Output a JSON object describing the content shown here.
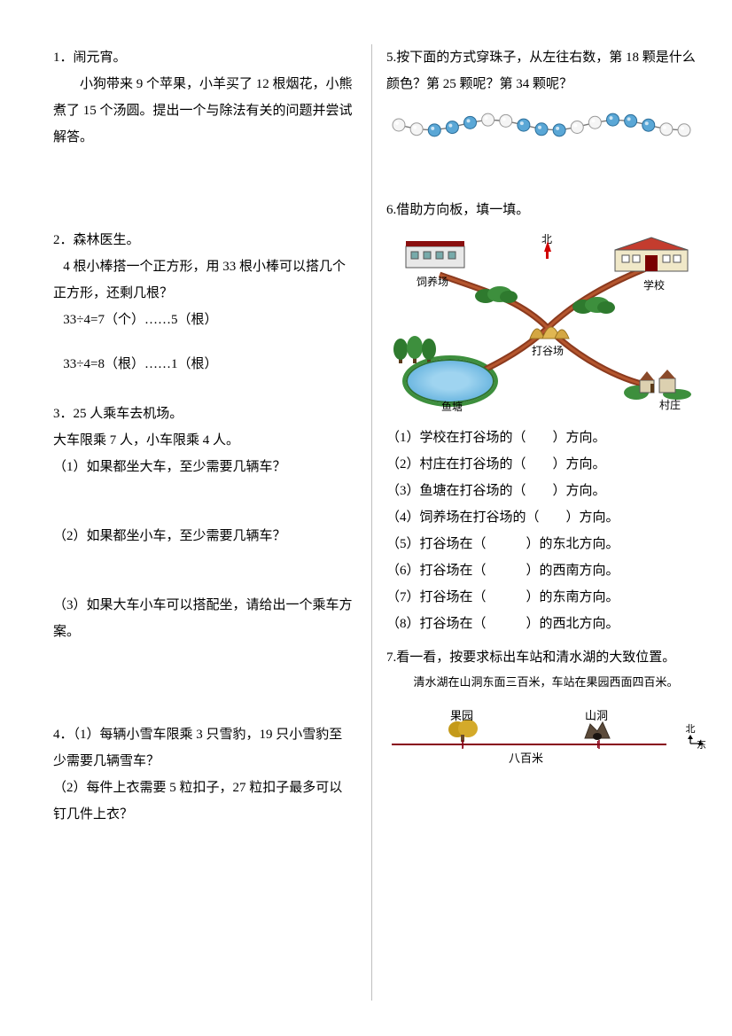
{
  "q1": {
    "num": "1．",
    "title": "闹元宵。",
    "body": "小狗带来 9 个苹果，小羊买了 12 根烟花，小熊煮了 15 个汤圆。提出一个与除法有关的问题并尝试解答。"
  },
  "q2": {
    "num": "2．",
    "title": "森林医生。",
    "body": "4 根小棒搭一个正方形，用 33 根小棒可以搭几个正方形，还剩几根？",
    "line1": "33÷4=7（个）……5（根）",
    "line2": "33÷4=8（根）……1（根）"
  },
  "q3": {
    "num": "3．",
    "title": "25 人乘车去机场。",
    "body": "大车限乘 7 人，小车限乘 4 人。",
    "p1": "（1）如果都坐大车，至少需要几辆车？",
    "p2": "（2）如果都坐小车，至少需要几辆车？",
    "p3": "（3）如果大车小车可以搭配坐，请给出一个乘车方案。"
  },
  "q4": {
    "num": "4．",
    "p1": "（1）每辆小雪车限乘 3 只雪豹，19 只小雪豹至少需要几辆雪车？",
    "p2": "（2）每件上衣需要 5 粒扣子，27 粒扣子最多可以钉几件上衣？"
  },
  "q5": {
    "num": "5.",
    "body": "按下面的方式穿珠子，从左往右数，第 18 颗是什么颜色？第 25 颗呢？第 34 颗呢？",
    "beads": {
      "pattern": [
        "w",
        "w",
        "b",
        "b",
        "b",
        "w",
        "w",
        "b",
        "b",
        "b",
        "w",
        "w",
        "b",
        "b",
        "b",
        "w",
        "w"
      ],
      "white_color": "#f5f5f5",
      "blue_color": "#5aa7d6",
      "string_color": "#7a7a7a",
      "radius": 7
    }
  },
  "q6": {
    "num": "6.",
    "title": "借助方向板，填一填。",
    "labels": {
      "farm": "饲养场",
      "school": "学校",
      "ground": "打谷场",
      "pond": "鱼塘",
      "village": "村庄",
      "north": "北"
    },
    "items": [
      "（1）学校在打谷场的（　　）方向。",
      "（2）村庄在打谷场的（　　）方向。",
      "（3）鱼塘在打谷场的（　　）方向。",
      "（4）饲养场在打谷场的（　　）方向。",
      "（5）打谷场在（　　　）的东北方向。",
      "（6）打谷场在（　　　）的西南方向。",
      "（7）打谷场在（　　　）的东南方向。",
      "（8）打谷场在（　　　）的西北方向。"
    ],
    "colors": {
      "road": "#8b3a1e",
      "grass": "#3d8f3d",
      "water": "#4aa3d6",
      "building": "#d9d9d9",
      "roof": "#7a0000",
      "gold": "#d4a742"
    }
  },
  "q7": {
    "num": "7.",
    "body": "看一看，按要求标出车站和清水湖的大致位置。",
    "caption": "清水湖在山洞东面三百米，车站在果园西面四百米。",
    "orchard": "果园",
    "cave": "山洞",
    "distance": "八百米",
    "north": "北",
    "east": "东",
    "line_color": "#880016",
    "orchard_color": "#c49a1a",
    "cave_color": "#5b4a3a"
  }
}
